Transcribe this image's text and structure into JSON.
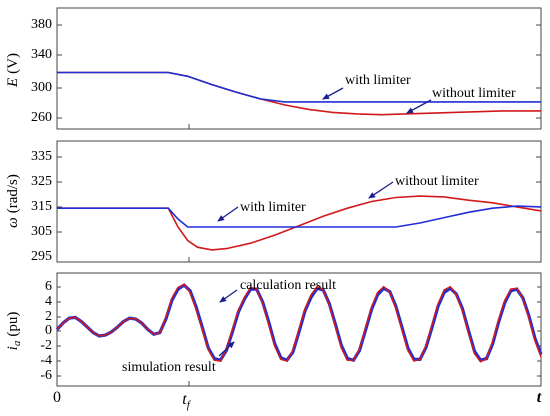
{
  "colors": {
    "with_limiter": "#1f2ed6",
    "without_limiter": "#d11a1a",
    "calculation": "#1f2ed6",
    "simulation": "#d11a1a",
    "axis": "#444444",
    "annotation_arrow": "#1a1f8c"
  },
  "x_axis": {
    "tick_labels": [
      "0",
      "t",
      "f",
      "t"
    ]
  },
  "chart_data": [
    {
      "type": "line",
      "ylabel": {
        "symbol": "E",
        "unit": "(V)"
      },
      "ylim": [
        250,
        400
      ],
      "yticks": [
        260,
        300,
        340,
        380
      ],
      "ytick_labels": [
        "260",
        "300",
        "340",
        "380"
      ],
      "annotations": {
        "with": "with limiter",
        "without": "without limiter"
      },
      "series": [
        {
          "name": "without limiter",
          "color": "#d11a1a",
          "x": [
            0,
            0.23,
            0.27,
            0.32,
            0.37,
            0.42,
            0.47,
            0.52,
            0.57,
            0.62,
            0.67,
            0.72,
            0.77,
            0.82,
            0.87,
            0.92,
            1.0
          ],
          "y": [
            321,
            321,
            316,
            305,
            295,
            286,
            278,
            272,
            268,
            266,
            265,
            266,
            267,
            268,
            269,
            270,
            270
          ]
        },
        {
          "name": "with limiter",
          "color": "#1f2ed6",
          "x": [
            0,
            0.23,
            0.27,
            0.32,
            0.37,
            0.42,
            0.47,
            0.52,
            0.57,
            0.62,
            0.67,
            0.72,
            0.77,
            0.82,
            0.87,
            0.92,
            1.0
          ],
          "y": [
            321,
            321,
            316,
            305,
            295,
            286,
            282,
            282,
            282,
            282,
            282,
            282,
            282,
            282,
            282,
            282,
            282
          ]
        }
      ]
    },
    {
      "type": "line",
      "ylabel": {
        "symbol": "ω",
        "unit": "(rad/s)"
      },
      "ylim": [
        295,
        340
      ],
      "yticks": [
        295,
        305,
        315,
        325,
        335
      ],
      "ytick_labels": [
        "295",
        "305",
        "315",
        "325",
        "335"
      ],
      "annotations": {
        "with": "with limiter",
        "without": "without limiter"
      },
      "series": [
        {
          "name": "without limiter",
          "color": "#d11a1a",
          "x": [
            0,
            0.23,
            0.25,
            0.27,
            0.29,
            0.32,
            0.35,
            0.4,
            0.45,
            0.5,
            0.55,
            0.6,
            0.65,
            0.7,
            0.75,
            0.8,
            0.85,
            0.9,
            0.95,
            1.0
          ],
          "y": [
            315,
            315,
            308,
            303,
            300.5,
            299.5,
            300,
            302,
            305,
            308.5,
            312,
            315,
            317.5,
            319,
            319.5,
            319.2,
            318,
            317,
            315.5,
            314
          ]
        },
        {
          "name": "with limiter",
          "color": "#1f2ed6",
          "x": [
            0,
            0.23,
            0.25,
            0.27,
            0.3,
            0.4,
            0.5,
            0.6,
            0.7,
            0.75,
            0.8,
            0.85,
            0.9,
            0.95,
            1.0
          ],
          "y": [
            315,
            315,
            311,
            308,
            308,
            308,
            308,
            308,
            308,
            309.5,
            311.5,
            313.5,
            315,
            315.8,
            315.5
          ]
        }
      ]
    },
    {
      "type": "line",
      "ylabel": {
        "symbol": "i",
        "subscript": "a",
        "unit": "(pu)"
      },
      "ylim": [
        -7,
        7
      ],
      "yticks": [
        -6,
        -4,
        -2,
        0,
        2,
        4,
        6
      ],
      "ytick_labels": [
        "-6",
        "-4",
        "-2",
        "0",
        "2",
        "4",
        "6"
      ],
      "annotations": {
        "calculation": "calculation result",
        "simulation": "simulation result"
      },
      "series": [
        {
          "name": "simulation result",
          "color": "#d11a1a",
          "x": [
            0,
            0.0125,
            0.025,
            0.0375,
            0.05,
            0.0625,
            0.075,
            0.0875,
            0.1,
            0.1125,
            0.125,
            0.1375,
            0.15,
            0.1625,
            0.175,
            0.1875,
            0.2,
            0.2125,
            0.225,
            0.2375,
            0.25,
            0.2625,
            0.275,
            0.2875,
            0.3,
            0.3125,
            0.325,
            0.3375,
            0.35,
            0.3625,
            0.375,
            0.3875,
            0.4,
            0.4125,
            0.425,
            0.4375,
            0.45,
            0.4625,
            0.475,
            0.4875,
            0.5,
            0.5125,
            0.525,
            0.5375,
            0.55,
            0.5625,
            0.575,
            0.5875,
            0.6,
            0.6125,
            0.625,
            0.6375,
            0.65,
            0.6625,
            0.675,
            0.6875,
            0.7,
            0.7125,
            0.725,
            0.7375,
            0.75,
            0.7625,
            0.775,
            0.7875,
            0.8,
            0.8125,
            0.825,
            0.8375,
            0.85,
            0.8625,
            0.875,
            0.8875,
            0.9,
            0.9125,
            0.925,
            0.9375,
            0.95,
            0.9625,
            0.975,
            0.9875,
            1.0
          ],
          "y": [
            0.0,
            0.8,
            1.4,
            1.5,
            1.0,
            0.3,
            -0.4,
            -0.8,
            -0.7,
            -0.3,
            0.3,
            1.0,
            1.4,
            1.3,
            0.8,
            0.0,
            -0.6,
            -0.4,
            1.5,
            3.9,
            5.2,
            5.6,
            4.6,
            2.5,
            0.0,
            -2.5,
            -3.8,
            -3.9,
            -2.4,
            0.0,
            2.4,
            4.0,
            5.2,
            5.0,
            3.2,
            0.6,
            -2.1,
            -3.7,
            -3.9,
            -2.6,
            0.0,
            2.6,
            4.3,
            5.3,
            4.9,
            3.0,
            0.4,
            -2.3,
            -3.8,
            -3.8,
            -2.4,
            0.2,
            2.8,
            4.6,
            5.3,
            4.6,
            2.6,
            0.0,
            -2.6,
            -3.9,
            -3.7,
            -2.0,
            0.6,
            3.2,
            4.9,
            5.3,
            4.3,
            2.3,
            -0.4,
            -3.0,
            -4.0,
            -3.6,
            -1.5,
            1.2,
            3.6,
            5.0,
            5.1,
            3.8,
            1.4,
            -1.4,
            -3.4
          ]
        },
        {
          "name": "calculation result",
          "color": "#1f2ed6",
          "x": [
            0,
            0.0125,
            0.025,
            0.0375,
            0.05,
            0.0625,
            0.075,
            0.0875,
            0.1,
            0.1125,
            0.125,
            0.1375,
            0.15,
            0.1625,
            0.175,
            0.1875,
            0.2,
            0.2125,
            0.225,
            0.2375,
            0.25,
            0.2625,
            0.275,
            0.2875,
            0.3,
            0.3125,
            0.325,
            0.3375,
            0.35,
            0.3625,
            0.375,
            0.3875,
            0.4,
            0.4125,
            0.425,
            0.4375,
            0.45,
            0.4625,
            0.475,
            0.4875,
            0.5,
            0.5125,
            0.525,
            0.5375,
            0.55,
            0.5625,
            0.575,
            0.5875,
            0.6,
            0.6125,
            0.625,
            0.6375,
            0.65,
            0.6625,
            0.675,
            0.6875,
            0.7,
            0.7125,
            0.725,
            0.7375,
            0.75,
            0.7625,
            0.775,
            0.7875,
            0.8,
            0.8125,
            0.825,
            0.8375,
            0.85,
            0.8625,
            0.875,
            0.8875,
            0.9,
            0.9125,
            0.925,
            0.9375,
            0.95,
            0.9625,
            0.975,
            0.9875,
            1.0
          ],
          "y": [
            0.0,
            0.8,
            1.4,
            1.5,
            1.0,
            0.3,
            -0.4,
            -0.8,
            -0.7,
            -0.3,
            0.3,
            1.0,
            1.4,
            1.3,
            0.8,
            0.0,
            -0.6,
            -0.4,
            1.3,
            3.6,
            5.0,
            5.5,
            4.8,
            2.8,
            0.3,
            -2.3,
            -3.6,
            -3.8,
            -2.6,
            -0.3,
            2.2,
            3.8,
            5.0,
            5.0,
            3.4,
            0.9,
            -1.8,
            -3.5,
            -3.8,
            -2.8,
            -0.3,
            2.3,
            4.0,
            5.1,
            4.9,
            3.2,
            0.7,
            -2.0,
            -3.6,
            -3.8,
            -2.6,
            -0.1,
            2.5,
            4.3,
            5.1,
            4.7,
            2.9,
            0.3,
            -2.3,
            -3.7,
            -3.7,
            -2.2,
            0.3,
            2.9,
            4.6,
            5.1,
            4.4,
            2.6,
            -0.1,
            -2.7,
            -3.8,
            -3.6,
            -1.8,
            0.9,
            3.3,
            4.8,
            5.0,
            3.9,
            1.7,
            -1.1,
            -3.1
          ]
        }
      ]
    }
  ]
}
